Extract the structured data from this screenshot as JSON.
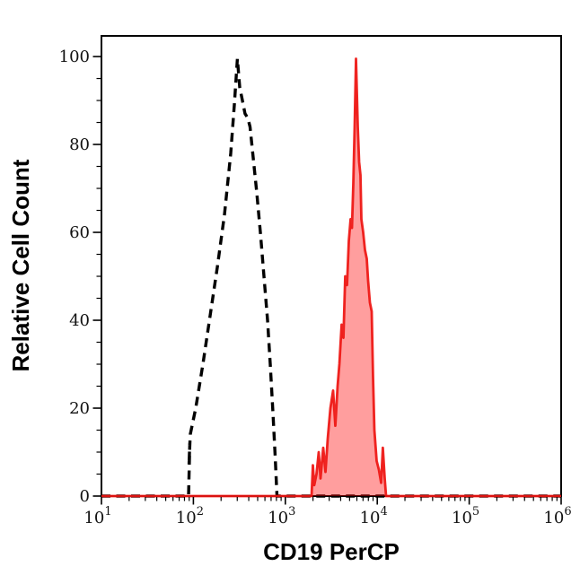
{
  "chart_data": {
    "type": "line",
    "subtype": "flow-cytometry-overlay-histogram",
    "title": "",
    "xlabel": "CD19 PerCP",
    "ylabel": "Relative Cell Count",
    "x_scale": "log10",
    "x_tick_base": "10",
    "x_tick_exponents": [
      "1",
      "2",
      "3",
      "4",
      "5",
      "6"
    ],
    "x_minor_ticks_per_decade": [
      2,
      3,
      4,
      5,
      6,
      7,
      8,
      9
    ],
    "xlim_log": [
      1,
      6
    ],
    "ylim": [
      0,
      104.7
    ],
    "y_tick_labels": [
      "0",
      "20",
      "40",
      "60",
      "80",
      "100"
    ],
    "y_tick_values": [
      0,
      20,
      40,
      60,
      80,
      100
    ],
    "y_minor_step": 5,
    "grid": "off",
    "legend": "none",
    "colors": {
      "background": "#ffffff",
      "axis": "#000000",
      "control_line": "#000000",
      "red_line": "#ee1410",
      "red_fill": "rgba(255,0,0,0.38)",
      "baseline_overlay": "#b3201a"
    },
    "series": [
      {
        "name": "black-dashed-histogram",
        "style": "dashed",
        "baseline": 0,
        "points_logx_y": [
          [
            1.947,
            0
          ],
          [
            1.961,
            12
          ],
          [
            1.952,
            7
          ],
          [
            1.966,
            14
          ],
          [
            2.025,
            20
          ],
          [
            2.104,
            30
          ],
          [
            2.182,
            41
          ],
          [
            2.26,
            52
          ],
          [
            2.338,
            64
          ],
          [
            2.406,
            78
          ],
          [
            2.445,
            89
          ],
          [
            2.479,
            99.5
          ],
          [
            2.504,
            93
          ],
          [
            2.533,
            90
          ],
          [
            2.562,
            87
          ],
          [
            2.592,
            86
          ],
          [
            2.616,
            84
          ],
          [
            2.65,
            77
          ],
          [
            2.689,
            69
          ],
          [
            2.729,
            60
          ],
          [
            2.768,
            50
          ],
          [
            2.807,
            40
          ],
          [
            2.836,
            30
          ],
          [
            2.865,
            19
          ],
          [
            2.89,
            9
          ],
          [
            2.909,
            0
          ]
        ]
      },
      {
        "name": "red-filled-histogram",
        "style": "solid-filled",
        "baseline": 0,
        "points_logx_y": [
          [
            3.285,
            0
          ],
          [
            3.3,
            7
          ],
          [
            3.314,
            2.5
          ],
          [
            3.339,
            5
          ],
          [
            3.363,
            10
          ],
          [
            3.383,
            4
          ],
          [
            3.412,
            11
          ],
          [
            3.437,
            5.5
          ],
          [
            3.461,
            13
          ],
          [
            3.49,
            20
          ],
          [
            3.52,
            24
          ],
          [
            3.544,
            16
          ],
          [
            3.568,
            25
          ],
          [
            3.588,
            30
          ],
          [
            3.612,
            39
          ],
          [
            3.632,
            36
          ],
          [
            3.651,
            50
          ],
          [
            3.671,
            48
          ],
          [
            3.69,
            58
          ],
          [
            3.71,
            63
          ],
          [
            3.725,
            61
          ],
          [
            3.739,
            71
          ],
          [
            3.754,
            84
          ],
          [
            3.769,
            99.5
          ],
          [
            3.788,
            84
          ],
          [
            3.803,
            76
          ],
          [
            3.817,
            73
          ],
          [
            3.827,
            63
          ],
          [
            3.847,
            60
          ],
          [
            3.866,
            56
          ],
          [
            3.886,
            54
          ],
          [
            3.9,
            49
          ],
          [
            3.92,
            44
          ],
          [
            3.939,
            42
          ],
          [
            3.954,
            27
          ],
          [
            3.969,
            15
          ],
          [
            3.993,
            8
          ],
          [
            4.018,
            6
          ],
          [
            4.042,
            3
          ],
          [
            4.061,
            11
          ],
          [
            4.081,
            4
          ],
          [
            4.096,
            0
          ]
        ]
      }
    ]
  }
}
